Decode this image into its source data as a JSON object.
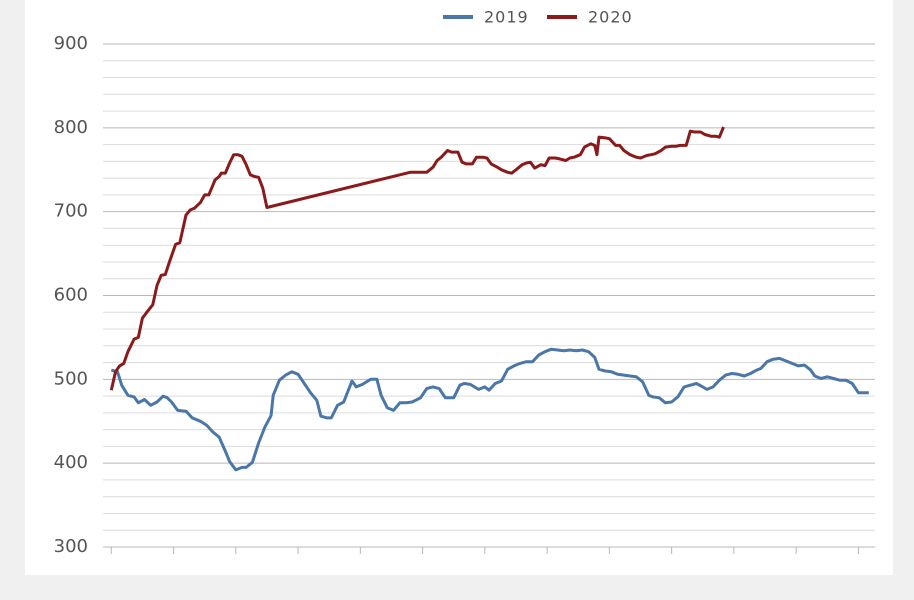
{
  "chart_data": {
    "type": "line",
    "xlim": [
      -4,
      368
    ],
    "xticks": [
      0,
      30,
      60,
      90,
      120,
      150,
      180,
      210,
      240,
      270,
      300,
      330,
      360
    ],
    "ylim": [
      300,
      900
    ],
    "yticks": [
      300,
      400,
      500,
      600,
      700,
      800,
      900
    ],
    "minor_yticks": [
      320,
      340,
      360,
      380,
      420,
      440,
      460,
      480,
      520,
      540,
      560,
      580,
      620,
      640,
      660,
      680,
      720,
      740,
      760,
      780,
      820,
      840,
      860,
      880
    ],
    "grid": true,
    "legend": "top",
    "series": [
      {
        "name": "2019",
        "color": "#4a77a8",
        "x": [
          0,
          3,
          5,
          8,
          11,
          13,
          16,
          19,
          22,
          25,
          27,
          29,
          32,
          36,
          39,
          43,
          46,
          49,
          52,
          55,
          57,
          60,
          63,
          65,
          68,
          71,
          74,
          77,
          78,
          81,
          84,
          87,
          90,
          93,
          96,
          99,
          101,
          104,
          106,
          109,
          112,
          116,
          118,
          121,
          125,
          128,
          130,
          133,
          136,
          139,
          142,
          145,
          149,
          152,
          155,
          158,
          161,
          165,
          168,
          170,
          173,
          177,
          180,
          182,
          185,
          188,
          191,
          194,
          197,
          200,
          203,
          206,
          209,
          212,
          215,
          218,
          221,
          224,
          227,
          230,
          233,
          235,
          238,
          241,
          244,
          247,
          250,
          253,
          256,
          259,
          261,
          264,
          267,
          270,
          273,
          276,
          279,
          282,
          285,
          287,
          290,
          293,
          296,
          299,
          302,
          305,
          308,
          311,
          313,
          316,
          319,
          322,
          325,
          328,
          331,
          334,
          337,
          339,
          342,
          345,
          348,
          351,
          354,
          357,
          360,
          363,
          365
        ],
        "values": [
          511,
          509,
          493,
          481,
          479,
          472,
          476,
          469,
          473,
          480,
          478,
          473,
          463,
          462,
          454,
          450,
          445,
          437,
          431,
          414,
          402,
          392,
          395,
          395,
          401,
          424,
          443,
          457,
          481,
          499,
          505,
          509,
          506,
          495,
          484,
          475,
          456,
          454,
          454,
          469,
          473,
          498,
          491,
          494,
          500,
          500,
          481,
          466,
          463,
          472,
          472,
          473,
          478,
          489,
          491,
          489,
          478,
          478,
          493,
          495,
          494,
          488,
          491,
          487,
          495,
          498,
          512,
          516,
          519,
          521,
          521,
          529,
          533,
          536,
          535,
          534,
          535,
          534,
          535,
          533,
          526,
          512,
          510,
          509,
          506,
          505,
          504,
          503,
          497,
          481,
          479,
          478,
          472,
          473,
          479,
          491,
          493,
          495,
          491,
          488,
          491,
          499,
          505,
          507,
          506,
          504,
          507,
          511,
          513,
          521,
          524,
          525,
          522,
          519,
          516,
          517,
          511,
          504,
          501,
          503,
          501,
          499,
          499,
          495,
          484,
          484,
          484
        ]
      },
      {
        "name": "2020",
        "color": "#8b1a1a",
        "x": [
          0,
          2,
          4,
          6,
          8,
          11,
          13,
          15,
          18,
          20,
          22,
          24,
          26,
          28,
          31,
          33,
          36,
          38,
          40,
          43,
          45,
          47,
          50,
          52,
          53,
          55,
          57,
          59,
          61,
          63,
          65,
          67,
          69,
          71,
          73,
          75,
          144,
          149,
          152,
          155,
          157,
          159,
          162,
          164,
          167,
          169,
          171,
          174,
          176,
          179,
          181,
          183,
          186,
          188,
          191,
          193,
          195,
          198,
          200,
          202,
          204,
          207,
          209,
          211,
          214,
          216,
          219,
          221,
          223,
          226,
          228,
          231,
          233,
          234,
          235,
          238,
          240,
          243,
          245,
          247,
          250,
          253,
          255,
          258,
          260,
          262,
          265,
          267,
          270,
          272,
          274,
          277,
          279,
          281,
          284,
          286,
          289,
          291,
          293,
          295
        ],
        "values": [
          487,
          509,
          516,
          519,
          533,
          548,
          550,
          573,
          583,
          589,
          612,
          624,
          625,
          640,
          661,
          663,
          696,
          702,
          704,
          711,
          720,
          720,
          738,
          742,
          746,
          746,
          758,
          768,
          768,
          766,
          756,
          744,
          742,
          741,
          728,
          705,
          747,
          747,
          747,
          753,
          761,
          765,
          773,
          771,
          771,
          759,
          757,
          757,
          765,
          765,
          764,
          757,
          753,
          750,
          747,
          746,
          750,
          756,
          758,
          759,
          752,
          756,
          755,
          764,
          764,
          763,
          761,
          764,
          765,
          768,
          777,
          781,
          779,
          768,
          789,
          788,
          787,
          779,
          779,
          773,
          768,
          765,
          764,
          767,
          768,
          769,
          773,
          777,
          778,
          778,
          779,
          779,
          796,
          795,
          795,
          792,
          790,
          790,
          789,
          801
        ]
      }
    ]
  }
}
